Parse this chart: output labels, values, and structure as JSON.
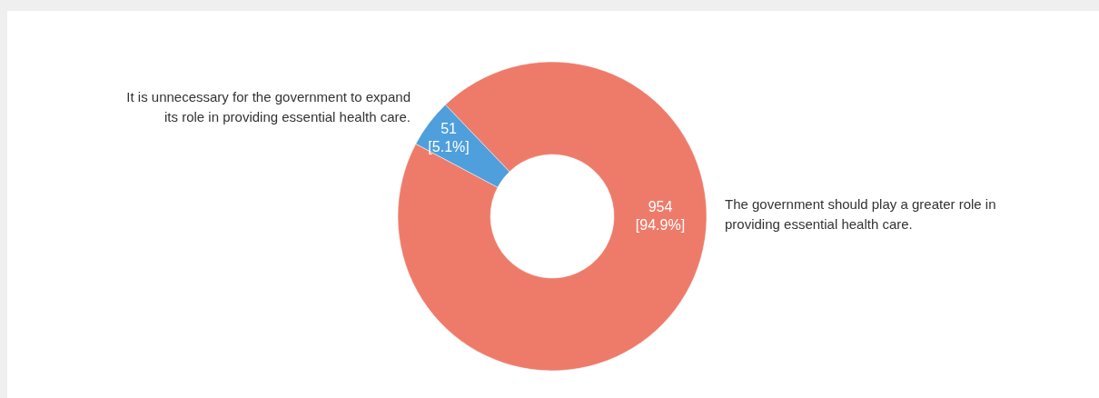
{
  "chart_data": {
    "type": "donut",
    "categories": [
      "The government should play a greater role in providing essential health care.",
      "It is unnecessary for the government to expand its role in providing essential health care."
    ],
    "values": [
      954,
      51
    ],
    "colors": [
      "#ee7b6a",
      "#4e9fdc"
    ],
    "value_labels": [
      "954\n[94.9%]",
      "51\n[5.1%]"
    ]
  }
}
